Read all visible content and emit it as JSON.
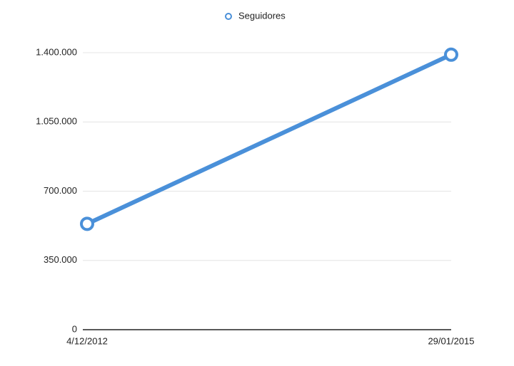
{
  "chart_data": {
    "type": "line",
    "categories": [
      "4/12/2012",
      "29/01/2015"
    ],
    "series": [
      {
        "name": "Seguidores",
        "color": "#4a90d9",
        "values": [
          535000,
          1390000
        ]
      }
    ],
    "ylim": [
      0,
      1400000
    ],
    "yticks": [
      0,
      {
        "value": 350000,
        "label": "350.000"
      },
      {
        "value": 700000,
        "label": "700.000"
      },
      {
        "value": 1050000,
        "label": "1.050.000"
      },
      {
        "value": 1400000,
        "label": "1.400.000"
      }
    ],
    "grid": true,
    "legend": "top"
  }
}
